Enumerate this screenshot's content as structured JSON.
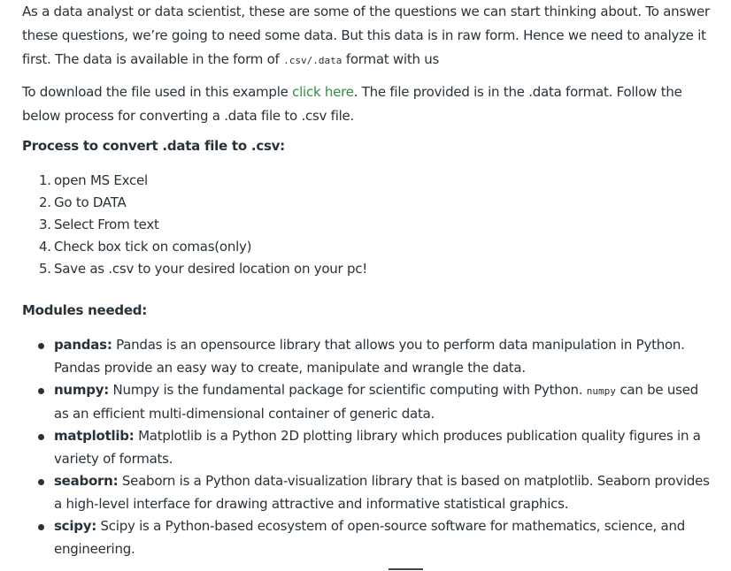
{
  "intro": {
    "part1": "As a data analyst or data scientist, these are some of the questions we can start thinking about. To answer these questions, we’re going to need some data. But this data is in raw form. Hence we need to analyze it first. The data is available in the form of ",
    "code": ".csv/.data",
    "part2": " format with us"
  },
  "download": {
    "before": "To download the file used in this example ",
    "link": "click here",
    "after": ". The file provided is in the .data format. Follow the below process for converting a .data file to .csv file."
  },
  "process": {
    "heading": "Process to convert .data file to .csv:",
    "steps": [
      {
        "num": "1.",
        "text": "open MS Excel"
      },
      {
        "num": "2.",
        "text": "Go to DATA"
      },
      {
        "num": "3.",
        "text": "Select From text"
      },
      {
        "num": "4.",
        "text": "Check box tick on comas(only)"
      },
      {
        "num": "5.",
        "text": "Save as .csv to your desired location on your pc!"
      }
    ]
  },
  "modules": {
    "heading": "Modules needed:",
    "items": [
      {
        "name": "pandas:",
        "text": " Pandas is an opensource library that allows you to perform data manipulation in Python. Pandas provide an easy way to create, manipulate and wrangle the data."
      },
      {
        "name": "numpy:",
        "text_before": " Numpy is the fundamental package for scientific computing with Python. ",
        "code": "numpy",
        "text_after": "  can be used as an efficient multi-dimensional container of generic data."
      },
      {
        "name": "matplotlib:",
        "text": " Matplotlib is a Python 2D plotting library which produces publication quality figures in a variety of formats."
      },
      {
        "name": "seaborn:",
        "text": " Seaborn is a Python data-visualization library that is based on matplotlib. Seaborn provides a high-level interface for drawing attractive and informative statistical graphics."
      },
      {
        "name": "scipy:",
        "text": " Scipy is a Python-based ecosystem of open-source software for mathematics, science, and engineering."
      }
    ]
  },
  "colors": {
    "text": "#273239",
    "link": "#2f8d46"
  }
}
